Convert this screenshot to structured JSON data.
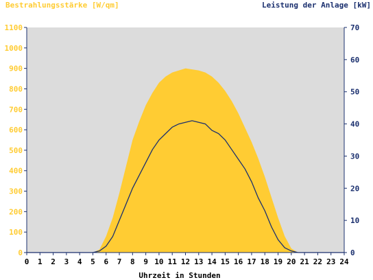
{
  "chart_data": {
    "type": "area",
    "title_left": "Bestrahlungsstärke [W/qm]",
    "title_right": "Leistung der Anlage [kW]",
    "xlabel": "Uhrzeit in Stunden",
    "xlim": [
      0,
      24
    ],
    "x_ticks": [
      0,
      1,
      2,
      3,
      4,
      5,
      6,
      7,
      8,
      9,
      10,
      11,
      12,
      13,
      14,
      15,
      16,
      17,
      18,
      19,
      20,
      21,
      22,
      23,
      24
    ],
    "y_left": {
      "ylim": [
        0,
        1100
      ],
      "ticks": [
        0,
        100,
        200,
        300,
        400,
        500,
        600,
        700,
        800,
        900,
        1000,
        1100
      ]
    },
    "y_right": {
      "ylim": [
        0,
        70
      ],
      "ticks": [
        0,
        10,
        20,
        30,
        40,
        50,
        60,
        70
      ]
    },
    "grid": false,
    "colors": {
      "plot_bg": "#dcdcdc",
      "irradiance": "#ffcc33",
      "power": "#1a2f6e",
      "left_axis_text": "#ffcc33",
      "right_axis_text": "#1a2f6e"
    },
    "series": [
      {
        "name": "Bestrahlungsstärke [W/qm]",
        "axis": "left",
        "kind": "area",
        "x": [
          0,
          5,
          5.5,
          6,
          6.5,
          7,
          7.5,
          8,
          8.5,
          9,
          9.5,
          10,
          10.5,
          11,
          11.5,
          12,
          12.5,
          13,
          13.5,
          14,
          14.5,
          15,
          15.5,
          16,
          16.5,
          17,
          17.5,
          18,
          18.5,
          19,
          19.5,
          20,
          20.5,
          21,
          22,
          23,
          24
        ],
        "values": [
          0,
          0,
          15,
          80,
          170,
          290,
          420,
          550,
          640,
          720,
          780,
          830,
          860,
          880,
          890,
          900,
          895,
          890,
          880,
          860,
          830,
          790,
          740,
          680,
          610,
          540,
          460,
          370,
          270,
          170,
          80,
          20,
          0,
          0,
          0,
          0,
          0
        ]
      },
      {
        "name": "Leistung der Anlage [kW]",
        "axis": "right",
        "kind": "line",
        "x": [
          0,
          5,
          5.5,
          6,
          6.5,
          7,
          7.5,
          8,
          8.5,
          9,
          9.5,
          10,
          10.5,
          11,
          11.5,
          12,
          12.5,
          13,
          13.5,
          14,
          14.5,
          15,
          15.5,
          16,
          16.5,
          17,
          17.5,
          18,
          18.5,
          19,
          19.5,
          20,
          20.5,
          21,
          22,
          23,
          24
        ],
        "values": [
          0,
          0,
          0.5,
          2,
          5,
          10,
          15,
          20,
          24,
          28,
          32,
          35,
          37,
          39,
          40,
          40.5,
          41,
          40.5,
          40,
          38,
          37,
          35,
          32,
          29,
          26,
          22,
          17,
          13,
          8,
          4,
          1.5,
          0.5,
          0,
          0,
          0,
          0,
          0
        ]
      }
    ]
  }
}
